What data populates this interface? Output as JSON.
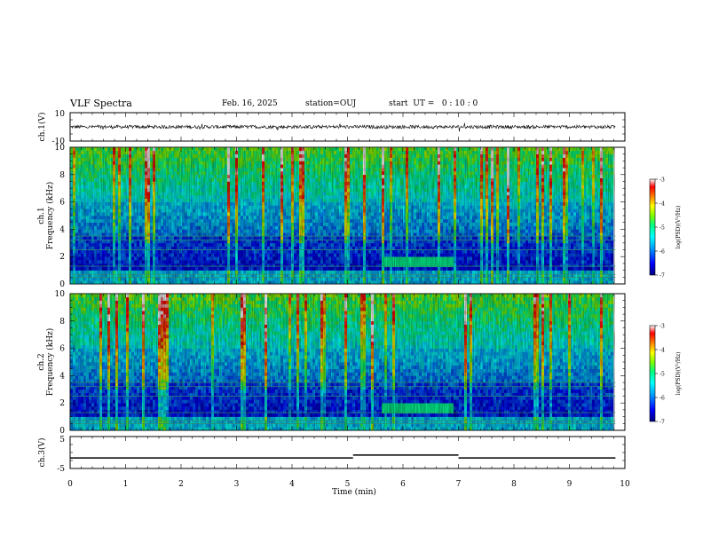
{
  "header": {
    "title": "VLF Spectra",
    "date": "Feb. 16, 2025",
    "station": "station=OUJ",
    "start_ut": "start  UT =   0 : 10 : 0"
  },
  "chart_data": [
    {
      "type": "line",
      "panel": "ch1-waveform",
      "ylabel": "ch.1(V)",
      "ylim": [
        -10,
        10
      ],
      "yticks": [
        "10",
        "-10"
      ],
      "xlim": [
        0,
        10
      ],
      "data_extent_min": [
        0,
        9.83
      ],
      "description_values": {
        "mean": 0,
        "noise_amplitude": 1.2
      }
    },
    {
      "type": "heatmap",
      "panel": "ch1-spectrogram",
      "ylabel": "ch.1\nFrequency (kHz)",
      "ylabel_line1": "ch.1",
      "ylabel_line2": "Frequency (kHz)",
      "ylim": [
        0,
        10
      ],
      "yticks": [
        "0",
        "2",
        "4",
        "6",
        "8",
        "10"
      ],
      "xlim": [
        0,
        10
      ],
      "colorbar": {
        "label": "log(PSD)(V²/Hz)",
        "range": [
          -7,
          -3
        ],
        "ticks": [
          "-3",
          "-4",
          "-5",
          "-6",
          "-7"
        ],
        "colors": [
          "#000080",
          "#0000ff",
          "#00a0ff",
          "#00ffff",
          "#00ff80",
          "#80ff00",
          "#ffff00",
          "#ff8000",
          "#ff0000",
          "#ffffff"
        ]
      }
    },
    {
      "type": "heatmap",
      "panel": "ch2-spectrogram",
      "ylabel_line1": "ch.2",
      "ylabel_line2": "Frequency (kHz)",
      "ylim": [
        0,
        10
      ],
      "yticks": [
        "0",
        "2",
        "4",
        "6",
        "8",
        "10"
      ],
      "xlim": [
        0,
        10
      ],
      "colorbar": {
        "label": "log(PSD)(V²/Hz)",
        "range": [
          -7,
          -3
        ],
        "ticks": [
          "-3",
          "-4",
          "-5",
          "-6",
          "-7"
        ]
      }
    },
    {
      "type": "line",
      "panel": "ch3-trigger",
      "ylabel": "ch.3(V)",
      "ylim": [
        -5,
        5
      ],
      "yticks": [
        "5",
        "-5"
      ],
      "xlim": [
        0,
        10
      ],
      "segments": [
        {
          "x": [
            0,
            5.1
          ],
          "y": [
            -1.7,
            -1.7
          ]
        },
        {
          "x": [
            5.1,
            7.0
          ],
          "y": [
            -0.8,
            -0.8
          ]
        },
        {
          "x": [
            7.0,
            9.83
          ],
          "y": [
            -1.7,
            -1.7
          ]
        }
      ]
    }
  ],
  "xaxis": {
    "label": "Time (min)",
    "ticks": [
      "0",
      "1",
      "2",
      "3",
      "4",
      "5",
      "6",
      "7",
      "8",
      "9",
      "10"
    ]
  }
}
